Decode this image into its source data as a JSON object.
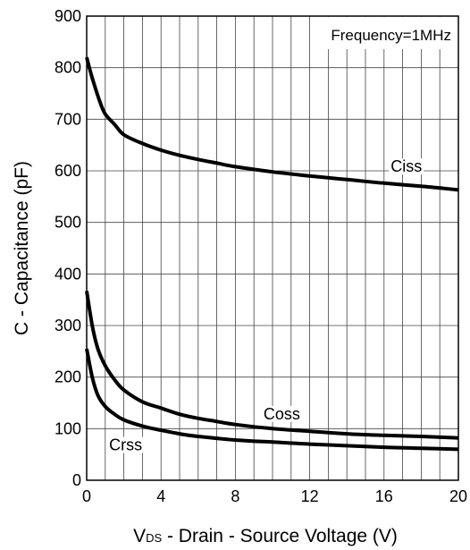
{
  "chart_data": {
    "type": "line",
    "title": "",
    "annotation": "Frequency=1MHz",
    "xlabel": {
      "prefix": "V",
      "subscript": "DS",
      "text": " - Drain - Source Voltage (V)"
    },
    "ylabel": "C - Capacitance (pF)",
    "xlim": [
      0,
      20
    ],
    "ylim": [
      0,
      900
    ],
    "x_ticks": [
      0,
      4,
      8,
      12,
      16,
      20
    ],
    "y_ticks": [
      0,
      100,
      200,
      300,
      400,
      500,
      600,
      700,
      800,
      900
    ],
    "grid": true,
    "legend": "inline labels",
    "line_color": "#000000",
    "series": [
      {
        "name": "Ciss",
        "x": [
          0,
          0.3,
          0.7,
          1,
          1.5,
          2,
          3,
          4,
          5,
          6,
          7,
          8,
          10,
          12,
          14,
          16,
          18,
          20
        ],
        "y": [
          820,
          780,
          735,
          710,
          690,
          670,
          653,
          640,
          630,
          622,
          615,
          608,
          598,
          590,
          583,
          576,
          570,
          563
        ]
      },
      {
        "name": "Coss",
        "x": [
          0,
          0.3,
          0.6,
          1,
          1.5,
          2,
          3,
          4,
          5,
          6,
          7,
          8,
          10,
          12,
          14,
          16,
          18,
          20
        ],
        "y": [
          367,
          300,
          255,
          222,
          195,
          175,
          152,
          140,
          128,
          120,
          114,
          108,
          100,
          95,
          90,
          87,
          85,
          82
        ]
      },
      {
        "name": "Crss",
        "x": [
          0,
          0.3,
          0.6,
          1,
          1.5,
          2,
          3,
          4,
          5,
          6,
          8,
          10,
          12,
          14,
          16,
          18,
          20
        ],
        "y": [
          255,
          200,
          165,
          143,
          128,
          117,
          105,
          97,
          90,
          85,
          78,
          74,
          70,
          67,
          64,
          62,
          60
        ]
      }
    ]
  }
}
